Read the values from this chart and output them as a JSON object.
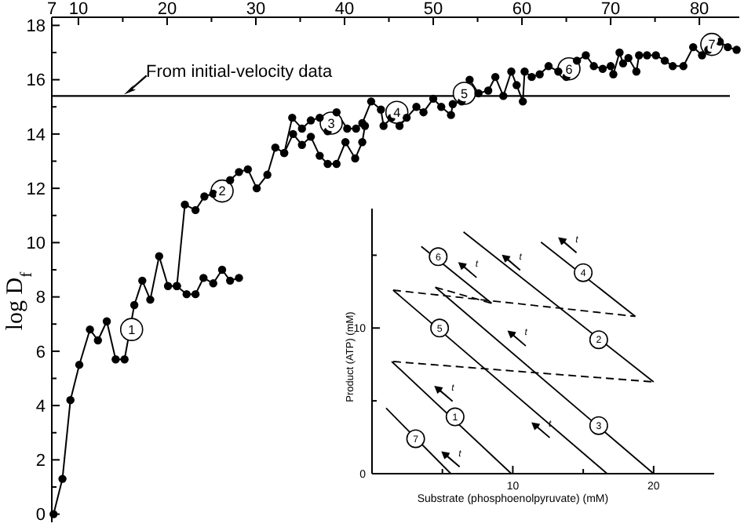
{
  "chart_data": [
    {
      "type": "line",
      "ylabel": "log D$_{f}$",
      "marker": "circle",
      "xlim": [
        7,
        84.5
      ],
      "ylim": [
        -0.3,
        18.3
      ],
      "xticks": [
        7,
        10,
        {
          "value": 15,
          "label": null
        },
        20,
        {
          "value": 25,
          "label": null
        },
        30,
        {
          "value": 35,
          "label": null
        },
        40,
        {
          "value": 45,
          "label": null
        },
        50,
        {
          "value": 55,
          "label": null
        },
        60,
        {
          "value": 65,
          "label": null
        },
        70,
        {
          "value": 75,
          "label": null
        },
        80
      ],
      "yticks": [
        0,
        {
          "value": 1,
          "label": null
        },
        2,
        {
          "value": 3,
          "label": null
        },
        4,
        {
          "value": 5,
          "label": null
        },
        6,
        {
          "value": 7,
          "label": null
        },
        8,
        {
          "value": 9,
          "label": null
        },
        10,
        {
          "value": 11,
          "label": null
        },
        12,
        {
          "value": 13,
          "label": null
        },
        14,
        {
          "value": 15,
          "label": null
        },
        16,
        {
          "value": 17,
          "label": null
        },
        18
      ],
      "series": [
        {
          "color": "#000000",
          "x": [
            7.2,
            8.2,
            9.1,
            10.1,
            11.3,
            12.2,
            13.2,
            14.2,
            15.2,
            16.3,
            17.2,
            18.1,
            19.1,
            20.1,
            21.1,
            22.0,
            23.2,
            24.2,
            25.2,
            27.1,
            28.1,
            29.1,
            30.1,
            31.3,
            32.2,
            33.2,
            34.1,
            35.2,
            36.2,
            37.2,
            38.1,
            39.1,
            40.3,
            41.3,
            42.0,
            43.0,
            44.1,
            44.4,
            45.3,
            46.2,
            47.0,
            48.1,
            48.9,
            50.0,
            50.9,
            52.0,
            52.2,
            53.2,
            54.1,
            55.1,
            56.2,
            57.0,
            57.9,
            58.8,
            59.4,
            60.1,
            60.3,
            61.1,
            62.0,
            63.0,
            64.1,
            65.0,
            66.2,
            67.2,
            68.1,
            69.1,
            70.0,
            70.3,
            71.0,
            71.4,
            72.0,
            72.9,
            73.2,
            74.1,
            75.1,
            76.1,
            77.0,
            78.2,
            79.3,
            80.3,
            81.0,
            82.3,
            83.2,
            84.2
          ],
          "values": [
            0,
            1.3,
            4.2,
            5.5,
            6.8,
            6.4,
            7.1,
            5.7,
            5.7,
            7.7,
            8.6,
            7.9,
            9.5,
            8.4,
            8.4,
            11.4,
            11.2,
            11.7,
            11.8,
            12.3,
            12.6,
            12.7,
            12.0,
            12.5,
            13.5,
            13.3,
            14.6,
            14.2,
            14.5,
            14.6,
            14.1,
            14.8,
            14.2,
            14.2,
            14.4,
            15.2,
            14.9,
            14.3,
            14.6,
            14.3,
            14.6,
            15.0,
            14.8,
            15.3,
            15.0,
            14.7,
            15.1,
            15.2,
            16.0,
            15.5,
            15.6,
            16.1,
            15.4,
            16.3,
            15.8,
            15.2,
            16.3,
            16.1,
            16.2,
            16.5,
            16.3,
            16.1,
            16.7,
            16.9,
            16.5,
            16.4,
            16.5,
            16.2,
            17.0,
            16.6,
            16.8,
            16.3,
            16.9,
            16.9,
            16.9,
            16.7,
            16.5,
            16.5,
            17.2,
            16.9,
            17.1,
            17.4,
            17.2,
            17.1
          ]
        },
        {
          "color": "#000000",
          "x": [
            21.1,
            22.2,
            23.2,
            24.1,
            25.2,
            26.2,
            27.1,
            28.1
          ],
          "values": [
            8.4,
            8.1,
            8.1,
            8.7,
            8.5,
            9.0,
            8.6,
            8.7
          ]
        },
        {
          "color": "#000000",
          "x": [
            33.2,
            34.2,
            35.2,
            36.2,
            37.2,
            38.1,
            39.1,
            40.1,
            41.2,
            42.0,
            42.3
          ],
          "values": [
            13.3,
            14.0,
            13.6,
            13.9,
            13.2,
            12.9,
            12.9,
            13.7,
            13.1,
            13.7,
            14.3
          ]
        }
      ],
      "ref_lines": [
        {
          "axis": "y",
          "value": 15.4,
          "label": "From initial-velocity data",
          "color": "#000000"
        }
      ],
      "annotations": [
        {
          "text": "1",
          "x": 16.0,
          "y": 6.8
        },
        {
          "text": "2",
          "x": 26.2,
          "y": 11.9
        },
        {
          "text": "3",
          "x": 38.5,
          "y": 14.4
        },
        {
          "text": "4",
          "x": 45.9,
          "y": 14.8
        },
        {
          "text": "5",
          "x": 53.5,
          "y": 15.5
        },
        {
          "text": "6",
          "x": 65.3,
          "y": 16.4
        },
        {
          "text": "7",
          "x": 81.4,
          "y": 17.3
        }
      ]
    },
    {
      "type": "line",
      "xlabel": "Substrate (phosphoenolpyruvate) (mM)",
      "ylabel": "Product (ATP) (mM)",
      "marker": "none",
      "xlim": [
        0,
        24.3
      ],
      "ylim": [
        0,
        18.2
      ],
      "xticks": [
        {
          "value": 0,
          "label": null
        },
        {
          "value": 5,
          "label": null
        },
        10,
        {
          "value": 15,
          "label": null
        },
        20
      ],
      "yticks": [
        0,
        {
          "value": 5,
          "label": null
        },
        10,
        {
          "value": 15,
          "label": null
        }
      ],
      "series": [
        {
          "color": "#000000",
          "line_style": "solid",
          "x": [
            1.0,
            5.6
          ],
          "values": [
            4.5,
            0
          ]
        },
        {
          "color": "#000000",
          "line_style": "solid",
          "x": [
            1.4,
            9.9
          ],
          "values": [
            7.7,
            0
          ]
        },
        {
          "color": "#000000",
          "line_style": "solid",
          "x": [
            1.5,
            16.7
          ],
          "values": [
            12.6,
            0
          ]
        },
        {
          "color": "#000000",
          "line_style": "solid",
          "x": [
            4.5,
            20.0
          ],
          "values": [
            12.8,
            0
          ]
        },
        {
          "color": "#000000",
          "line_style": "solid",
          "x": [
            6.5,
            20.0
          ],
          "values": [
            16.6,
            6.3
          ]
        },
        {
          "color": "#000000",
          "line_style": "solid",
          "x": [
            3.5,
            8.5
          ],
          "values": [
            15.6,
            11.7
          ]
        },
        {
          "color": "#000000",
          "line_style": "solid",
          "x": [
            12.0,
            18.7
          ],
          "values": [
            15.9,
            10.8
          ]
        },
        {
          "color": "#000000",
          "line_style": "dashed",
          "x": [
            1.5,
            18.7
          ],
          "values": [
            12.6,
            10.8
          ]
        },
        {
          "color": "#000000",
          "line_style": "dashed",
          "x": [
            4.5,
            8.5
          ],
          "values": [
            12.8,
            11.7
          ]
        },
        {
          "color": "#000000",
          "line_style": "dashed",
          "x": [
            1.5,
            20.0
          ],
          "values": [
            7.7,
            6.3
          ]
        }
      ],
      "annotations": [
        {
          "text": "1",
          "x": 5.9,
          "y": 3.9
        },
        {
          "text": "2",
          "x": 16.1,
          "y": 9.2
        },
        {
          "text": "3",
          "x": 16.1,
          "y": 3.3
        },
        {
          "text": "4",
          "x": 15.0,
          "y": 13.8
        },
        {
          "text": "5",
          "x": 4.8,
          "y": 10.0
        },
        {
          "text": "6",
          "x": 4.7,
          "y": 14.9
        },
        {
          "text": "7",
          "x": 3.1,
          "y": 2.4
        },
        "t",
        "t",
        "t",
        "t",
        "t",
        "t",
        "t"
      ]
    }
  ]
}
